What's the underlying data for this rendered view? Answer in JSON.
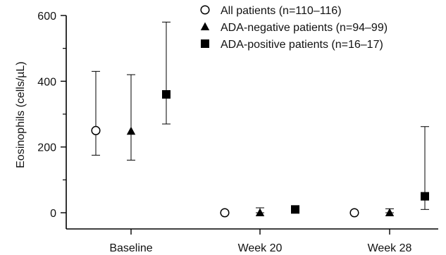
{
  "chart_data": {
    "type": "scatter",
    "title": "",
    "xlabel": "",
    "ylabel": "Eosinophils (cells/µL)",
    "categories": [
      "Baseline",
      "Week 20",
      "Week 28"
    ],
    "ylim": [
      -50,
      600
    ],
    "yticks": [
      0,
      200,
      400,
      600
    ],
    "grid": false,
    "legend_position": "top-right",
    "error_bars": true,
    "series": [
      {
        "name": "All patients (n=110–116)",
        "marker": "open-circle",
        "color": "#000000",
        "values": [
          250,
          0,
          0
        ],
        "lower": [
          175,
          0,
          0
        ],
        "upper": [
          430,
          5,
          0
        ]
      },
      {
        "name": "ADA-negative patients (n=94–99)",
        "marker": "filled-triangle",
        "color": "#000000",
        "values": [
          248,
          0,
          0
        ],
        "lower": [
          160,
          0,
          0
        ],
        "upper": [
          420,
          15,
          12
        ]
      },
      {
        "name": "ADA-positive patients (n=16–17)",
        "marker": "filled-square",
        "color": "#000000",
        "values": [
          360,
          10,
          50
        ],
        "lower": [
          270,
          10,
          10
        ],
        "upper": [
          580,
          10,
          262
        ]
      }
    ]
  }
}
